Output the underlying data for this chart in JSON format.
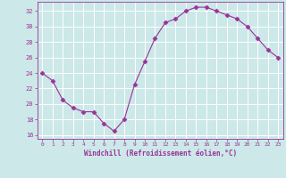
{
  "x": [
    0,
    1,
    2,
    3,
    4,
    5,
    6,
    7,
    8,
    9,
    10,
    11,
    12,
    13,
    14,
    15,
    16,
    17,
    18,
    19,
    20,
    21,
    22,
    23
  ],
  "y": [
    24,
    23,
    20.5,
    19.5,
    19,
    19,
    17.5,
    16.5,
    18,
    22.5,
    25.5,
    28.5,
    30.5,
    31,
    32,
    32.5,
    32.5,
    32,
    31.5,
    31,
    30,
    28.5,
    27,
    26
  ],
  "line_color": "#993399",
  "marker": "D",
  "marker_size": 2.5,
  "bg_color": "#cce8e8",
  "grid_color": "#ffffff",
  "xlabel": "Windchill (Refroidissement éolien,°C)",
  "xlabel_color": "#993399",
  "tick_color": "#993399",
  "spine_color": "#993399",
  "xlim": [
    -0.5,
    23.5
  ],
  "ylim": [
    15.5,
    33.2
  ],
  "yticks": [
    16,
    18,
    20,
    22,
    24,
    26,
    28,
    30,
    32
  ],
  "xticks": [
    0,
    1,
    2,
    3,
    4,
    5,
    6,
    7,
    8,
    9,
    10,
    11,
    12,
    13,
    14,
    15,
    16,
    17,
    18,
    19,
    20,
    21,
    22,
    23
  ]
}
